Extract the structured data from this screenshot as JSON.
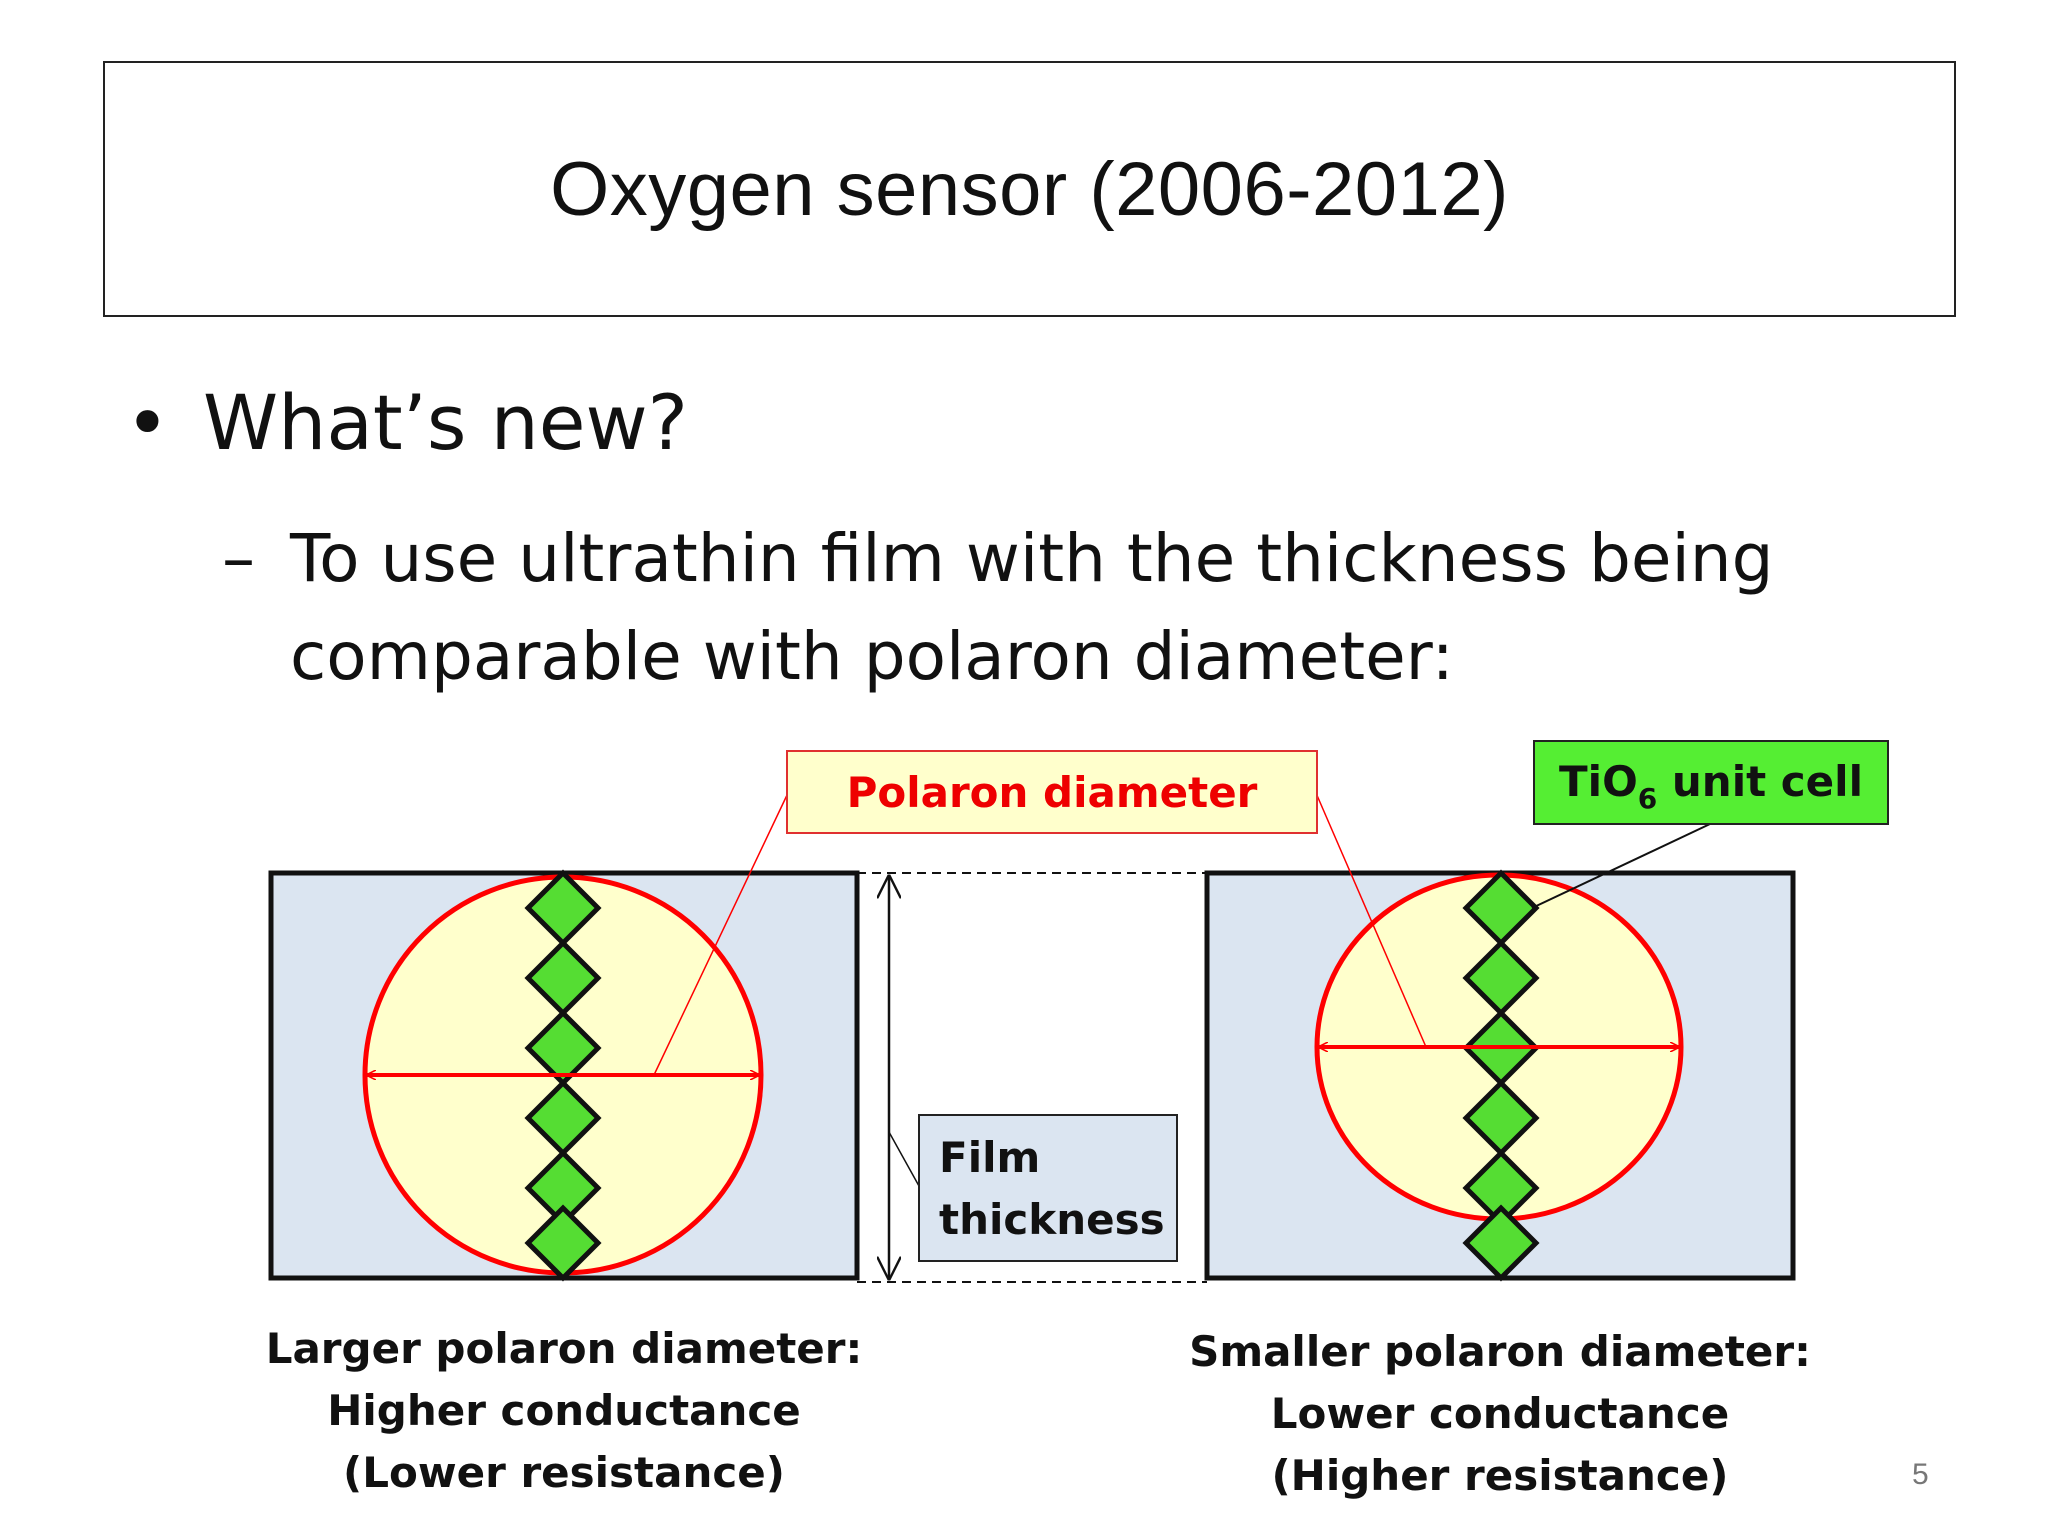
{
  "slide": {
    "title": "Oxygen sensor (2006-2012)",
    "bullet": {
      "symbol": "•",
      "text": "What’s new?"
    },
    "sub_bullet": {
      "symbol": "–",
      "text": "To use ultrathin film with the thickness being comparable with polaron diameter:"
    },
    "page_number": "5"
  },
  "diagram": {
    "labels": {
      "polaron_diameter": "Polaron diameter",
      "unit_cell_prefix": "TiO",
      "unit_cell_subscript": "6",
      "unit_cell_suffix": " unit cell",
      "film_thickness_line1": "Film",
      "film_thickness_line2": "thickness"
    },
    "left_panel": {
      "caption_line1": "Larger polaron diameter:",
      "caption_line2": "Higher conductance",
      "caption_line3": "(Lower resistance)"
    },
    "right_panel": {
      "caption_line1": "Smaller polaron diameter:",
      "caption_line2": "Lower conductance",
      "caption_line3": "(Higher resistance)"
    },
    "colors": {
      "panel_fill": "#dbe5f1",
      "polaron_fill": "#ffffcc",
      "polaron_stroke": "#ff0000",
      "cell_fill": "#55dd33",
      "polaron_label_text": "#ee0000",
      "polaron_label_fill": "#ffffcc",
      "unit_cell_label_fill": "#55ee33",
      "film_label_fill": "#dbe5f1"
    },
    "icons": [
      "double-arrow",
      "unit-cell-diamond"
    ]
  }
}
